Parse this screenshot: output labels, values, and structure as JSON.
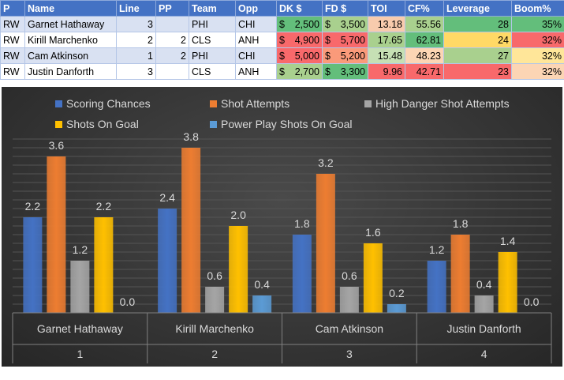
{
  "table": {
    "headers": [
      "P",
      "Name",
      "Line",
      "PP",
      "Team",
      "Opp",
      "DK $",
      "FD $",
      "TOI",
      "CF%",
      "Leverage",
      "Boom%"
    ],
    "rows": [
      {
        "pos": "RW",
        "name": "Garnet Hathaway",
        "line": "3",
        "pp": "",
        "team": "PHI",
        "opp": "CHI",
        "dk": "2,500",
        "fd": "3,500",
        "toi": "13.18",
        "cf": "55.56",
        "leverage": "28",
        "boom": "35%",
        "colors": {
          "dk": "#63be7b",
          "fd": "#a9d08e",
          "toi": "#f8cbad",
          "cf": "#a9d08e",
          "leverage": "#63be7b",
          "boom": "#63be7b"
        }
      },
      {
        "pos": "RW",
        "name": "Kirill Marchenko",
        "line": "2",
        "pp": "2",
        "team": "CLS",
        "opp": "ANH",
        "dk": "4,900",
        "fd": "5,700",
        "toi": "17.65",
        "cf": "62.81",
        "leverage": "24",
        "boom": "32%",
        "colors": {
          "dk": "#f8696b",
          "fd": "#f8696b",
          "toi": "#a9d08e",
          "cf": "#63be7b",
          "leverage": "#ffd966",
          "boom": "#f8696b"
        }
      },
      {
        "pos": "RW",
        "name": "Cam Atkinson",
        "line": "1",
        "pp": "2",
        "team": "PHI",
        "opp": "CHI",
        "dk": "5,000",
        "fd": "5,200",
        "toi": "15.48",
        "cf": "48.23",
        "leverage": "27",
        "boom": "32%",
        "colors": {
          "dk": "#f8696b",
          "fd": "#fa9a7a",
          "toi": "#c6e0b4",
          "cf": "#fcd5b4",
          "leverage": "#a9d08e",
          "boom": "#ffe699"
        }
      },
      {
        "pos": "RW",
        "name": "Justin Danforth",
        "line": "3",
        "pp": "",
        "team": "CLS",
        "opp": "ANH",
        "dk": "2,700",
        "fd": "3,300",
        "toi": "9.96",
        "cf": "42.71",
        "leverage": "23",
        "boom": "32%",
        "colors": {
          "dk": "#a9d08e",
          "fd": "#63be7b",
          "toi": "#f8696b",
          "cf": "#f8696b",
          "leverage": "#f8696b",
          "boom": "#fcd5b4"
        }
      }
    ],
    "currency": "$"
  },
  "chart_data": {
    "type": "bar",
    "title": "",
    "xlabel": "",
    "ylabel": "",
    "ylim": [
      0,
      4.0
    ],
    "grid": true,
    "legend": "top",
    "categories": [
      "Garnet Hathaway",
      "Kirill Marchenko",
      "Cam Atkinson",
      "Justin Danforth"
    ],
    "category_groups": [
      "1",
      "2",
      "3",
      "4"
    ],
    "series": [
      {
        "name": "Scoring Chances",
        "values": [
          2.2,
          2.4,
          1.8,
          1.2
        ],
        "color": "#4472c4"
      },
      {
        "name": "Shot Attempts",
        "values": [
          3.6,
          3.8,
          3.2,
          1.8
        ],
        "color": "#ed7d31"
      },
      {
        "name": "High Danger Shot Attempts",
        "values": [
          1.2,
          0.6,
          0.6,
          0.4
        ],
        "color": "#a5a5a5"
      },
      {
        "name": "Shots On Goal",
        "values": [
          2.2,
          2.0,
          1.6,
          1.4
        ],
        "color": "#ffc000"
      },
      {
        "name": "Power Play Shots On Goal",
        "values": [
          0.0,
          0.4,
          0.2,
          0.0
        ],
        "color": "#5b9bd5"
      }
    ]
  }
}
